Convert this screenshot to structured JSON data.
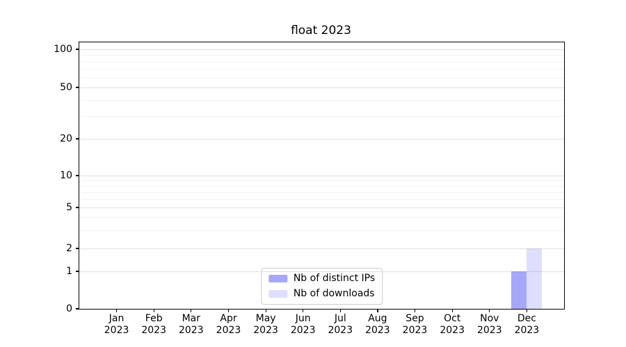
{
  "chart_data": {
    "type": "bar",
    "title": "float 2023",
    "categories": [
      "Jan 2023",
      "Feb 2023",
      "Mar 2023",
      "Apr 2023",
      "May 2023",
      "Jun 2023",
      "Jul 2023",
      "Aug 2023",
      "Sep 2023",
      "Oct 2023",
      "Nov 2023",
      "Dec 2023"
    ],
    "series": [
      {
        "name": "Nb of distinct IPs",
        "color": "rgba(80,80,245,0.50)",
        "values": [
          0,
          0,
          0,
          0,
          0,
          0,
          0,
          0,
          0,
          0,
          0,
          1
        ]
      },
      {
        "name": "Nb of downloads",
        "color": "rgba(80,80,245,0.19)",
        "values": [
          0,
          0,
          0,
          0,
          0,
          0,
          0,
          0,
          0,
          0,
          0,
          2
        ]
      }
    ],
    "yaxis": {
      "scale": "symlog",
      "ticks": [
        0,
        1,
        2,
        5,
        10,
        20,
        50,
        100
      ],
      "tick_fractions_from_top": [
        1.0,
        0.8594,
        0.7734,
        0.6198,
        0.5,
        0.362,
        0.1693,
        0.026
      ],
      "minor_gridline_values": [
        3,
        4,
        6,
        7,
        8,
        9,
        30,
        40,
        60,
        70,
        80,
        90
      ]
    },
    "xlabel": "",
    "ylabel": "",
    "grid": {
      "major_color": "#e0e0e0",
      "minor_color": "#f2f2f2"
    },
    "axis_color": "#000000",
    "legend": {
      "position": "lower center"
    }
  }
}
